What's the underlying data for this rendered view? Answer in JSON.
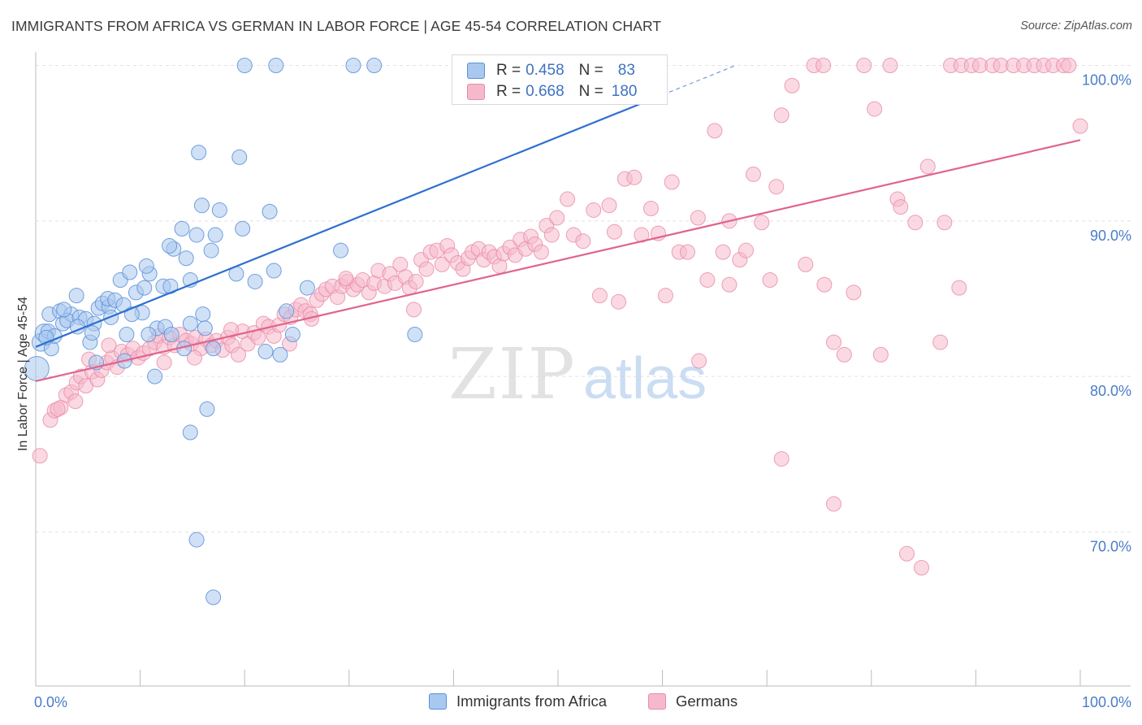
{
  "header": {
    "title": "IMMIGRANTS FROM AFRICA VS GERMAN IN LABOR FORCE | AGE 45-54 CORRELATION CHART",
    "source": "Source: ZipAtlas.com"
  },
  "watermark": {
    "part1": "ZIP",
    "part2": "atlas"
  },
  "legend": {
    "rows": [
      {
        "r_label": "R =",
        "r_value": "0.458",
        "n_label": "N =",
        "n_value": "83"
      },
      {
        "r_label": "R =",
        "r_value": "0.668",
        "n_label": "N =",
        "n_value": "180"
      }
    ]
  },
  "colors": {
    "blue_fill": "#a9c8ef",
    "blue_stroke": "#5b8fd9",
    "blue_line": "#2f6fcf",
    "pink_fill": "#f6b9cc",
    "pink_stroke": "#e98aa8",
    "pink_line": "#e0648e",
    "tick_label": "#4a7cc9"
  },
  "chart_data": {
    "type": "scatter",
    "title": "IMMIGRANTS FROM AFRICA VS GERMAN IN LABOR FORCE | AGE 45-54 CORRELATION CHART",
    "xlabel": "",
    "ylabel": "In Labor Force | Age 45-54",
    "xlim": [
      0,
      100
    ],
    "ylim": [
      62,
      101
    ],
    "x_ticks": [
      {
        "value": 0,
        "label": "0.0%"
      },
      {
        "value": 100,
        "label": "100.0%"
      }
    ],
    "y_ticks": [
      {
        "value": 70,
        "label": "70.0%"
      },
      {
        "value": 80,
        "label": "80.0%"
      },
      {
        "value": 90,
        "label": "90.0%"
      },
      {
        "value": 100,
        "label": "100.0%"
      }
    ],
    "grid": "horizontal dashed",
    "legend_position": "top-center",
    "series": [
      {
        "name": "Immigrants from Africa",
        "color": "#a9c8ef",
        "R": 0.458,
        "N": 83,
        "trend": {
          "x0": 0,
          "y0": 81.9,
          "x1": 60,
          "y1": 98.1,
          "dashed_to_x": 67,
          "dashed_to_y": 100.0
        },
        "points": [
          [
            0.1,
            80.5
          ],
          [
            0.5,
            82.2
          ],
          [
            0.8,
            82.8
          ],
          [
            1.2,
            82.9
          ],
          [
            1.5,
            81.8
          ],
          [
            1.8,
            82.6
          ],
          [
            1.3,
            84.0
          ],
          [
            2.3,
            84.2
          ],
          [
            2.6,
            83.4
          ],
          [
            3.4,
            84.0
          ],
          [
            3.0,
            83.6
          ],
          [
            4.2,
            83.8
          ],
          [
            3.9,
            85.2
          ],
          [
            4.8,
            83.7
          ],
          [
            5.2,
            82.2
          ],
          [
            5.6,
            83.4
          ],
          [
            6.0,
            84.4
          ],
          [
            6.4,
            84.7
          ],
          [
            7.0,
            84.5
          ],
          [
            6.9,
            85.0
          ],
          [
            7.6,
            84.9
          ],
          [
            8.4,
            84.6
          ],
          [
            8.1,
            86.2
          ],
          [
            9.0,
            86.7
          ],
          [
            8.7,
            82.7
          ],
          [
            9.6,
            85.4
          ],
          [
            10.4,
            85.7
          ],
          [
            10.9,
            86.6
          ],
          [
            10.6,
            87.1
          ],
          [
            11.6,
            83.1
          ],
          [
            12.2,
            85.8
          ],
          [
            12.9,
            85.8
          ],
          [
            13.2,
            88.2
          ],
          [
            12.8,
            88.4
          ],
          [
            14.0,
            89.5
          ],
          [
            14.4,
            87.6
          ],
          [
            14.8,
            86.2
          ],
          [
            15.4,
            89.1
          ],
          [
            15.6,
            94.4
          ],
          [
            15.9,
            91.0
          ],
          [
            16.0,
            84.0
          ],
          [
            16.8,
            88.1
          ],
          [
            17.2,
            89.1
          ],
          [
            17.6,
            90.7
          ],
          [
            19.2,
            86.6
          ],
          [
            19.5,
            94.1
          ],
          [
            19.8,
            89.5
          ],
          [
            21.0,
            86.1
          ],
          [
            22.0,
            81.6
          ],
          [
            22.4,
            90.6
          ],
          [
            22.8,
            86.8
          ],
          [
            23.4,
            81.4
          ],
          [
            24.0,
            84.2
          ],
          [
            24.6,
            82.7
          ],
          [
            26.0,
            85.7
          ],
          [
            8.5,
            81.0
          ],
          [
            5.8,
            80.9
          ],
          [
            10.8,
            82.7
          ],
          [
            11.4,
            80.0
          ],
          [
            12.4,
            83.2
          ],
          [
            13.0,
            82.7
          ],
          [
            14.2,
            81.8
          ],
          [
            14.8,
            83.4
          ],
          [
            16.2,
            83.1
          ],
          [
            17.0,
            81.8
          ],
          [
            16.4,
            77.9
          ],
          [
            14.8,
            76.4
          ],
          [
            15.4,
            69.5
          ],
          [
            17.0,
            65.8
          ],
          [
            20.0,
            100.0
          ],
          [
            23.0,
            100.0
          ],
          [
            30.4,
            100.0
          ],
          [
            32.4,
            100.0
          ],
          [
            54.5,
            100.0
          ],
          [
            29.2,
            88.1
          ],
          [
            36.3,
            82.7
          ],
          [
            10.2,
            84.1
          ],
          [
            9.2,
            84.0
          ],
          [
            7.2,
            83.8
          ],
          [
            5.4,
            82.8
          ],
          [
            4.0,
            83.2
          ],
          [
            2.7,
            84.3
          ],
          [
            1.0,
            82.5
          ]
        ]
      },
      {
        "name": "Germans",
        "color": "#f6b9cc",
        "R": 0.668,
        "N": 180,
        "trend": {
          "x0": 0,
          "y0": 79.7,
          "x1": 100,
          "y1": 95.2
        },
        "points": [
          [
            0.4,
            74.9
          ],
          [
            1.4,
            77.2
          ],
          [
            1.8,
            77.8
          ],
          [
            2.4,
            78.0
          ],
          [
            2.9,
            78.8
          ],
          [
            3.4,
            79.0
          ],
          [
            3.9,
            79.6
          ],
          [
            4.3,
            80.0
          ],
          [
            4.8,
            79.4
          ],
          [
            5.4,
            80.3
          ],
          [
            5.9,
            79.8
          ],
          [
            6.3,
            80.4
          ],
          [
            6.8,
            80.9
          ],
          [
            7.3,
            81.2
          ],
          [
            7.8,
            80.6
          ],
          [
            8.2,
            81.6
          ],
          [
            8.8,
            81.4
          ],
          [
            9.3,
            81.8
          ],
          [
            9.8,
            81.2
          ],
          [
            10.3,
            81.5
          ],
          [
            10.9,
            81.8
          ],
          [
            11.4,
            82.2
          ],
          [
            11.8,
            82.6
          ],
          [
            12.3,
            81.9
          ],
          [
            12.8,
            82.5
          ],
          [
            13.3,
            82.0
          ],
          [
            13.8,
            82.7
          ],
          [
            14.4,
            82.3
          ],
          [
            14.9,
            82.1
          ],
          [
            15.3,
            82.5
          ],
          [
            15.8,
            81.8
          ],
          [
            16.3,
            82.4
          ],
          [
            16.8,
            82.0
          ],
          [
            17.3,
            82.3
          ],
          [
            17.9,
            81.7
          ],
          [
            18.4,
            82.5
          ],
          [
            18.8,
            82.0
          ],
          [
            19.4,
            81.4
          ],
          [
            19.8,
            82.9
          ],
          [
            20.3,
            82.1
          ],
          [
            20.9,
            82.8
          ],
          [
            21.3,
            82.5
          ],
          [
            21.8,
            83.4
          ],
          [
            22.3,
            83.2
          ],
          [
            22.8,
            82.6
          ],
          [
            23.3,
            83.3
          ],
          [
            23.8,
            84.0
          ],
          [
            24.4,
            83.8
          ],
          [
            24.9,
            84.3
          ],
          [
            25.4,
            84.6
          ],
          [
            25.8,
            84.2
          ],
          [
            26.3,
            84.0
          ],
          [
            26.9,
            84.9
          ],
          [
            27.4,
            85.3
          ],
          [
            27.8,
            85.6
          ],
          [
            28.4,
            85.8
          ],
          [
            28.9,
            85.1
          ],
          [
            29.3,
            85.8
          ],
          [
            29.8,
            86.1
          ],
          [
            30.4,
            85.6
          ],
          [
            30.8,
            85.9
          ],
          [
            31.3,
            86.2
          ],
          [
            31.9,
            85.4
          ],
          [
            32.4,
            86.0
          ],
          [
            32.8,
            86.8
          ],
          [
            33.4,
            85.8
          ],
          [
            33.9,
            86.6
          ],
          [
            34.4,
            86.0
          ],
          [
            34.9,
            87.2
          ],
          [
            35.4,
            86.4
          ],
          [
            35.8,
            85.7
          ],
          [
            36.4,
            86.1
          ],
          [
            36.9,
            87.5
          ],
          [
            37.4,
            86.9
          ],
          [
            37.8,
            88.0
          ],
          [
            38.4,
            88.1
          ],
          [
            38.9,
            87.2
          ],
          [
            39.4,
            88.4
          ],
          [
            39.8,
            87.8
          ],
          [
            40.4,
            87.3
          ],
          [
            40.9,
            86.9
          ],
          [
            41.4,
            87.6
          ],
          [
            41.8,
            88.0
          ],
          [
            42.4,
            88.2
          ],
          [
            42.9,
            87.5
          ],
          [
            43.4,
            88.0
          ],
          [
            43.9,
            87.7
          ],
          [
            44.4,
            87.1
          ],
          [
            44.8,
            87.9
          ],
          [
            45.4,
            88.3
          ],
          [
            45.9,
            87.8
          ],
          [
            46.4,
            88.8
          ],
          [
            46.9,
            88.2
          ],
          [
            47.4,
            89.0
          ],
          [
            47.8,
            88.5
          ],
          [
            48.4,
            88.0
          ],
          [
            48.9,
            89.7
          ],
          [
            49.4,
            89.1
          ],
          [
            49.9,
            90.2
          ],
          [
            50.9,
            91.4
          ],
          [
            51.5,
            89.1
          ],
          [
            52.4,
            88.7
          ],
          [
            53.4,
            90.7
          ],
          [
            54.0,
            85.2
          ],
          [
            54.9,
            91.0
          ],
          [
            55.4,
            89.3
          ],
          [
            56.4,
            92.7
          ],
          [
            57.3,
            92.8
          ],
          [
            58.0,
            89.1
          ],
          [
            58.9,
            90.8
          ],
          [
            59.6,
            89.2
          ],
          [
            60.9,
            92.5
          ],
          [
            61.6,
            88.0
          ],
          [
            62.4,
            88.0
          ],
          [
            63.4,
            90.2
          ],
          [
            64.3,
            86.2
          ],
          [
            65.0,
            95.8
          ],
          [
            65.8,
            88.0
          ],
          [
            66.4,
            90.0
          ],
          [
            67.4,
            87.5
          ],
          [
            68.0,
            88.1
          ],
          [
            68.7,
            93.0
          ],
          [
            69.5,
            89.9
          ],
          [
            70.9,
            92.2
          ],
          [
            71.4,
            96.8
          ],
          [
            72.4,
            98.7
          ],
          [
            73.7,
            87.2
          ],
          [
            74.5,
            100.0
          ],
          [
            75.4,
            100.0
          ],
          [
            76.4,
            82.2
          ],
          [
            77.4,
            81.4
          ],
          [
            78.3,
            85.4
          ],
          [
            79.3,
            100.0
          ],
          [
            80.3,
            97.2
          ],
          [
            80.9,
            81.4
          ],
          [
            81.8,
            100.0
          ],
          [
            82.5,
            91.4
          ],
          [
            82.8,
            90.9
          ],
          [
            84.2,
            89.9
          ],
          [
            85.4,
            93.5
          ],
          [
            86.6,
            82.2
          ],
          [
            87.0,
            89.9
          ],
          [
            87.6,
            100.0
          ],
          [
            88.6,
            100.0
          ],
          [
            89.6,
            100.0
          ],
          [
            90.4,
            100.0
          ],
          [
            91.6,
            100.0
          ],
          [
            92.4,
            100.0
          ],
          [
            93.6,
            100.0
          ],
          [
            94.6,
            100.0
          ],
          [
            95.6,
            100.0
          ],
          [
            96.5,
            100.0
          ],
          [
            97.4,
            100.0
          ],
          [
            98.4,
            100.0
          ],
          [
            71.4,
            74.7
          ],
          [
            76.4,
            71.8
          ],
          [
            83.4,
            68.6
          ],
          [
            84.8,
            67.7
          ],
          [
            66.4,
            85.9
          ],
          [
            70.3,
            86.2
          ],
          [
            75.5,
            85.9
          ],
          [
            63.5,
            81.0
          ],
          [
            60.3,
            85.2
          ],
          [
            55.8,
            84.8
          ],
          [
            36.2,
            84.3
          ],
          [
            29.7,
            86.3
          ],
          [
            26.4,
            83.7
          ],
          [
            24.3,
            82.1
          ],
          [
            18.7,
            83.0
          ],
          [
            15.2,
            81.2
          ],
          [
            12.3,
            80.9
          ],
          [
            7.0,
            82.0
          ],
          [
            5.1,
            81.1
          ],
          [
            3.8,
            78.4
          ],
          [
            2.1,
            77.9
          ],
          [
            88.4,
            85.7
          ],
          [
            98.9,
            100.0
          ],
          [
            100.0,
            96.1
          ]
        ]
      }
    ]
  },
  "bottom_legend": {
    "items": [
      {
        "label": "Immigrants from Africa"
      },
      {
        "label": "Germans"
      }
    ]
  }
}
